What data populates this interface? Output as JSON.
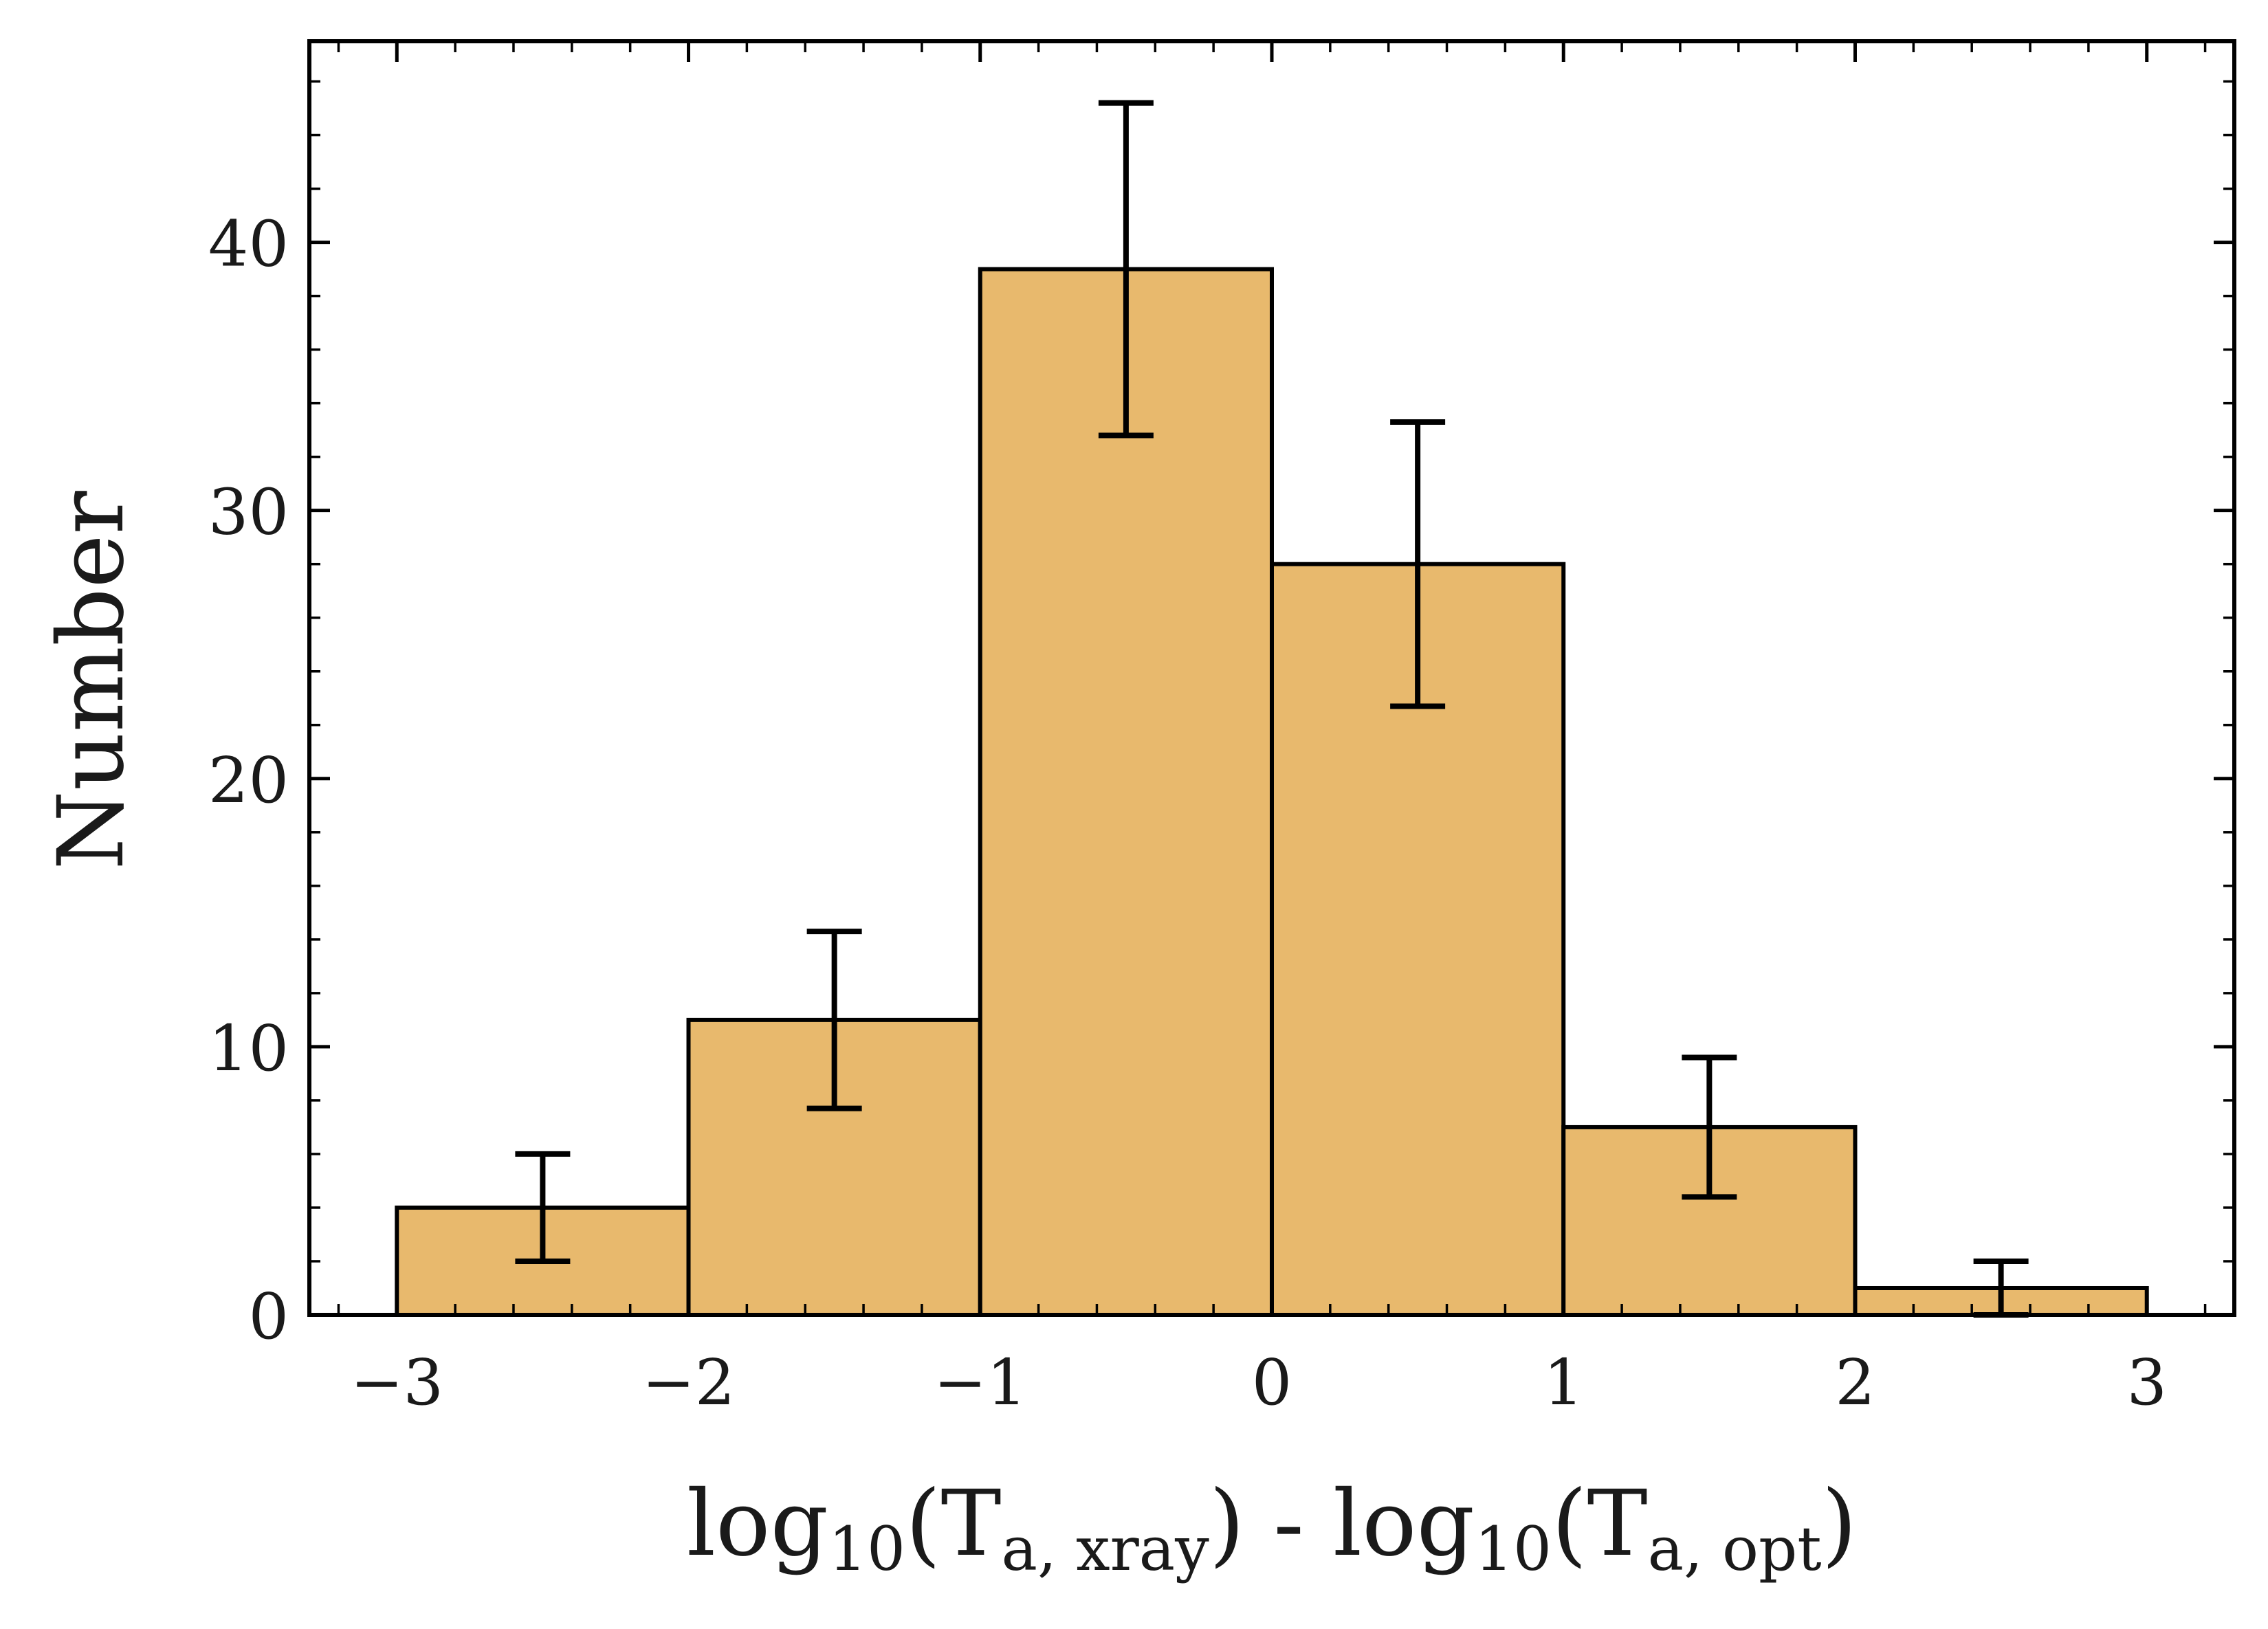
{
  "chart_data": {
    "type": "bar",
    "title": "",
    "bin_edges": [
      -3,
      -2,
      -1,
      0,
      1,
      2,
      3
    ],
    "values": [
      4,
      11,
      39,
      28,
      7,
      1
    ],
    "errors": [
      2,
      3.3,
      6.2,
      5.3,
      2.6,
      1
    ],
    "xlim": [
      -3.3,
      3.3
    ],
    "ylim": [
      0,
      47.5
    ],
    "xticks": [
      -3,
      -2,
      -1,
      0,
      1,
      2,
      3
    ],
    "xtick_labels": [
      "−3",
      "−2",
      "−1",
      "0",
      "1",
      "2",
      "3"
    ],
    "yticks": [
      0,
      10,
      20,
      30,
      40
    ],
    "ytick_labels": [
      "0",
      "10",
      "20",
      "30",
      "40"
    ],
    "x_minor_step": 0.2,
    "y_minor_step": 2,
    "ylabel": "Number",
    "xlabel": {
      "part1": "log",
      "sub1": "10",
      "part2": "(T",
      "sub2": "a, xray",
      "part3": ") - log",
      "sub3": "10",
      "part4": "(T",
      "sub4": "a, opt",
      "part5": ")"
    },
    "bar_color": "#e8b96d",
    "edge_color": "#000000",
    "grid": false,
    "legend": "none"
  }
}
